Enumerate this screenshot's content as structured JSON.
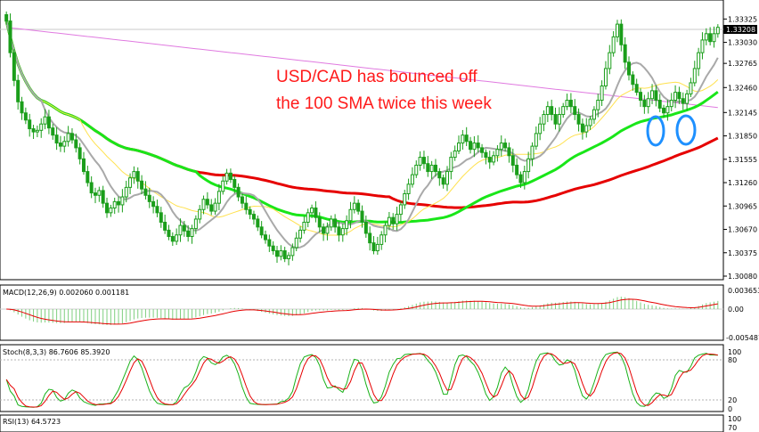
{
  "chart_data": {
    "type": "candlestick",
    "annotation": [
      "USD/CAD has bounced off",
      "the 100 SMA twice this week"
    ],
    "main_panel": {
      "price_range": [
        1.3008,
        1.3343
      ],
      "y_ticks": [
        "1.33325",
        "1.33030",
        "1.32765",
        "1.32460",
        "1.32145",
        "1.31850",
        "1.31555",
        "1.31260",
        "1.30965",
        "1.30670",
        "1.30375",
        "1.30080"
      ],
      "current_price": "1.33208",
      "candles_close": [
        1.333,
        1.329,
        1.3255,
        1.3228,
        1.3214,
        1.3205,
        1.3194,
        1.319,
        1.3192,
        1.32,
        1.3209,
        1.3195,
        1.3186,
        1.3176,
        1.3172,
        1.3178,
        1.3188,
        1.318,
        1.317,
        1.3156,
        1.314,
        1.3126,
        1.3113,
        1.311,
        1.3116,
        1.31,
        1.3088,
        1.3094,
        1.3102,
        1.3098,
        1.3108,
        1.312,
        1.3132,
        1.314,
        1.3128,
        1.3118,
        1.311,
        1.3102,
        1.3096,
        1.3088,
        1.3076,
        1.3066,
        1.3058,
        1.3052,
        1.306,
        1.3072,
        1.3065,
        1.3058,
        1.3068,
        1.308,
        1.3092,
        1.3105,
        1.3098,
        1.309,
        1.31,
        1.3115,
        1.3128,
        1.3138,
        1.313,
        1.312,
        1.3108,
        1.31,
        1.3092,
        1.3086,
        1.308,
        1.307,
        1.306,
        1.3054,
        1.3046,
        1.304,
        1.3033,
        1.304,
        1.303,
        1.3034,
        1.3044,
        1.3056,
        1.3066,
        1.3076,
        1.3088,
        1.3094,
        1.3082,
        1.307,
        1.3062,
        1.307,
        1.308,
        1.307,
        1.306,
        1.3068,
        1.3078,
        1.3092,
        1.31,
        1.309,
        1.3076,
        1.3062,
        1.305,
        1.304,
        1.3048,
        1.306,
        1.3072,
        1.3082,
        1.3074,
        1.3086,
        1.3098,
        1.3112,
        1.3124,
        1.3136,
        1.3148,
        1.3158,
        1.315,
        1.314,
        1.3148,
        1.314,
        1.3132,
        1.3124,
        1.314,
        1.3158,
        1.3166,
        1.3176,
        1.3186,
        1.3178,
        1.3168,
        1.3176,
        1.317,
        1.3164,
        1.3158,
        1.3152,
        1.316,
        1.3168,
        1.3176,
        1.317,
        1.316,
        1.3148,
        1.3136,
        1.3126,
        1.314,
        1.3156,
        1.3172,
        1.3188,
        1.32,
        1.3212,
        1.3222,
        1.3212,
        1.32,
        1.3212,
        1.3222,
        1.323,
        1.3222,
        1.3212,
        1.32,
        1.319,
        1.3198,
        1.3206,
        1.3218,
        1.323,
        1.3248,
        1.327,
        1.329,
        1.331,
        1.3326,
        1.33,
        1.3278,
        1.3262,
        1.325,
        1.324,
        1.323,
        1.3222,
        1.3232,
        1.3242,
        1.323,
        1.322,
        1.3214,
        1.3222,
        1.323,
        1.324,
        1.3232,
        1.3226,
        1.3238,
        1.3252,
        1.327,
        1.329,
        1.3306,
        1.3314,
        1.3304,
        1.3314,
        1.3322
      ]
    },
    "macd": {
      "label": "MACD(12,26,9) 0.002060 0.001181",
      "y_ticks": [
        "0.003653",
        "0.00",
        "-0.005487"
      ]
    },
    "stochastic": {
      "label": "Stoch(8,3,3) 86.7606 85.3920",
      "y_ticks": [
        "100",
        "80",
        "20",
        "0"
      ]
    },
    "rsi": {
      "label": "RSI(13) 64.5723",
      "y_ticks": [
        "100",
        "70"
      ]
    },
    "colors": {
      "candle": "#1a9e1a",
      "sma_gray": "#a9a9a9",
      "sma_yellow": "#ffe14d",
      "sma_green": "#19e619",
      "sma_red": "#e60000",
      "sma_magenta": "#e07ae0",
      "ellipse": "#1e90ff",
      "annotation": "#ff1a1a"
    }
  }
}
